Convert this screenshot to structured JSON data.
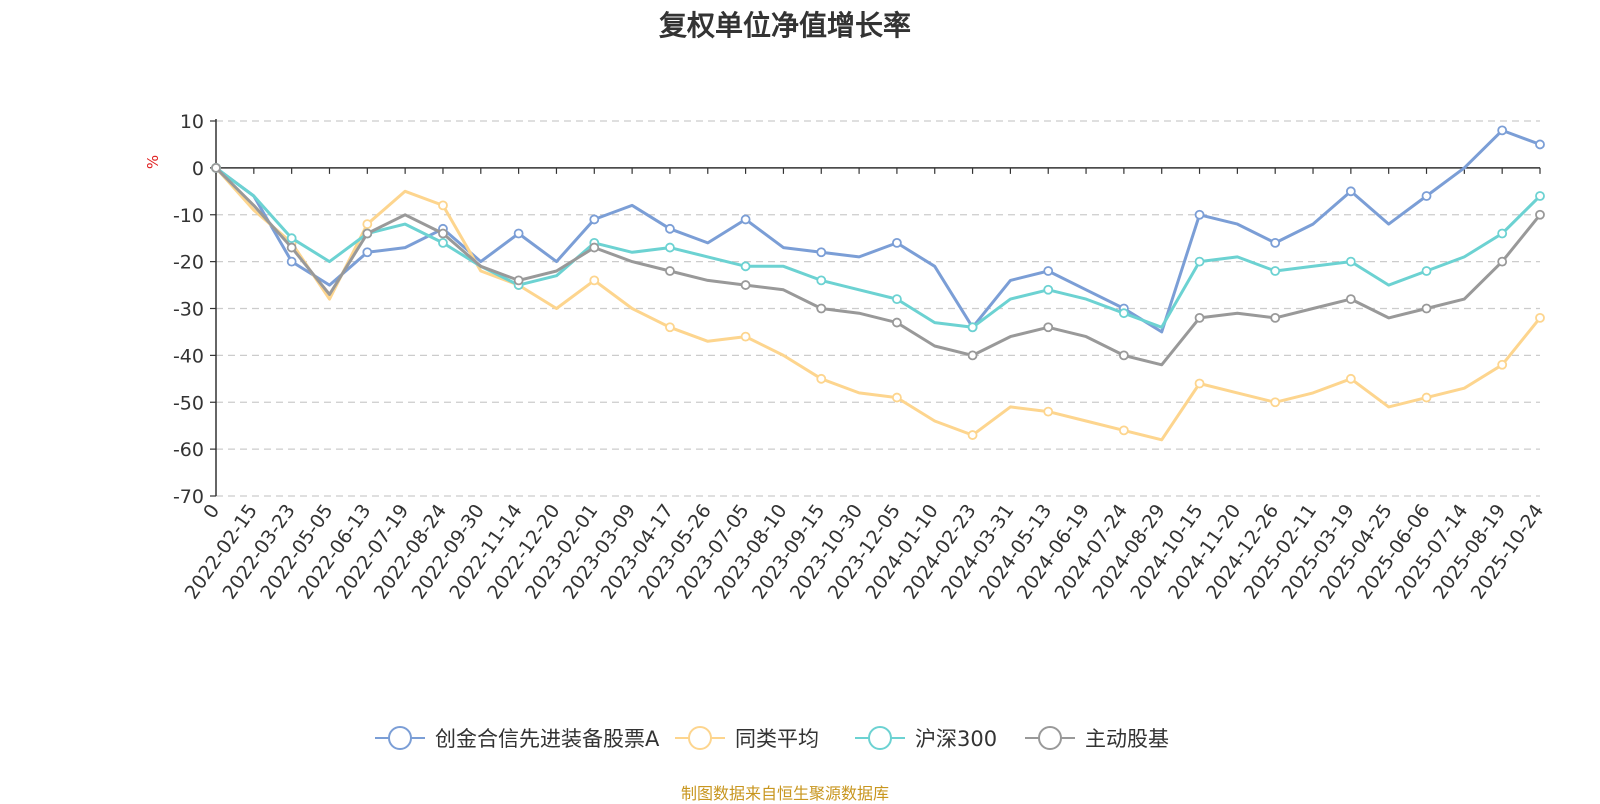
{
  "title": "复权单位净值增长率",
  "source_note": "制图数据来自恒生聚源数据库",
  "chart_data": {
    "type": "line",
    "title": "复权单位净值增长率",
    "ylabel": "%",
    "xlabel": "",
    "ylim": [
      -70,
      10
    ],
    "yticks": [
      10,
      0,
      -10,
      -20,
      -30,
      -40,
      -50,
      -60,
      -70
    ],
    "grid": true,
    "legend_position": "bottom-center",
    "x_labels": [
      "0",
      "2022-02-15",
      "2022-03-23",
      "2022-05-05",
      "2022-06-13",
      "2022-07-19",
      "2022-08-24",
      "2022-09-30",
      "2022-11-14",
      "2022-12-20",
      "2023-02-01",
      "2023-03-09",
      "2023-04-17",
      "2023-05-26",
      "2023-07-05",
      "2023-08-10",
      "2023-09-15",
      "2023-10-30",
      "2023-12-05",
      "2024-01-10",
      "2024-02-23",
      "2024-03-31",
      "2024-05-13",
      "2024-06-19",
      "2024-07-24",
      "2024-08-29",
      "2024-10-15",
      "2024-11-20",
      "2024-12-26",
      "2025-02-11",
      "2025-03-19",
      "2025-04-25",
      "2025-06-06",
      "2025-07-14",
      "2025-08-19",
      "2025-10-24"
    ],
    "series": [
      {
        "name": "创金合信先进装备股票A",
        "color": "#7b9ed6",
        "values": [
          0,
          -6,
          -20,
          -25,
          -18,
          -17,
          -13,
          -20,
          -14,
          -20,
          -11,
          -8,
          -13,
          -16,
          -11,
          -17,
          -18,
          -19,
          -16,
          -21,
          -34,
          -24,
          -22,
          -26,
          -30,
          -35,
          -10,
          -12,
          -16,
          -12,
          -5,
          -12,
          -6,
          0,
          8,
          5
        ]
      },
      {
        "name": "同类平均",
        "color": "#fdd58e",
        "values": [
          0,
          -9,
          -16,
          -28,
          -12,
          -5,
          -8,
          -22,
          -25,
          -30,
          -24,
          -30,
          -34,
          -37,
          -36,
          -40,
          -45,
          -48,
          -49,
          -54,
          -57,
          -51,
          -52,
          -54,
          -56,
          -58,
          -46,
          -48,
          -50,
          -48,
          -45,
          -51,
          -49,
          -47,
          -42,
          -32
        ]
      },
      {
        "name": "沪深300",
        "color": "#6cd2d2",
        "values": [
          0,
          -6,
          -15,
          -20,
          -14,
          -12,
          -16,
          -21,
          -25,
          -23,
          -16,
          -18,
          -17,
          -19,
          -21,
          -21,
          -24,
          -26,
          -28,
          -33,
          -34,
          -28,
          -26,
          -28,
          -31,
          -34,
          -20,
          -19,
          -22,
          -21,
          -20,
          -25,
          -22,
          -19,
          -14,
          -6
        ]
      },
      {
        "name": "主动股基",
        "color": "#999999",
        "values": [
          0,
          -8,
          -17,
          -27,
          -14,
          -10,
          -14,
          -21,
          -24,
          -22,
          -17,
          -20,
          -22,
          -24,
          -25,
          -26,
          -30,
          -31,
          -33,
          -38,
          -40,
          -36,
          -34,
          -36,
          -40,
          -42,
          -32,
          -31,
          -32,
          -30,
          -28,
          -32,
          -30,
          -28,
          -20,
          -10
        ]
      }
    ]
  }
}
